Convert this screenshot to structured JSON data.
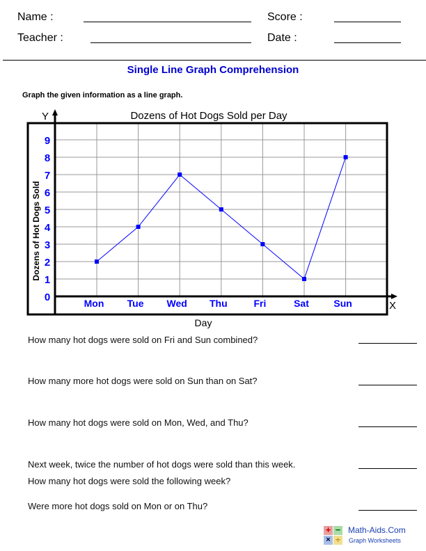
{
  "header": {
    "name_label": "Name :",
    "teacher_label": "Teacher :",
    "score_label": "Score :",
    "date_label": "Date :"
  },
  "worksheet": {
    "title": "Single Line Graph Comprehension",
    "instruction": "Graph the given information as a line graph."
  },
  "chart_data": {
    "type": "line",
    "title": "Dozens of Hot Dogs Sold per Day",
    "xlabel": "Day",
    "ylabel": "Dozens of Hot Dogs Sold",
    "x_axis_letter": "X",
    "y_axis_letter": "Y",
    "categories": [
      "Mon",
      "Tue",
      "Wed",
      "Thu",
      "Fri",
      "Sat",
      "Sun"
    ],
    "values": [
      2,
      4,
      7,
      5,
      3,
      1,
      8
    ],
    "yticks": [
      0,
      1,
      2,
      3,
      4,
      5,
      6,
      7,
      8,
      9
    ],
    "ylim": [
      0,
      10
    ],
    "grid": true,
    "line_color": "#0000ff",
    "tick_color": "#0000ff"
  },
  "questions": [
    {
      "text": "How many hot dogs were sold on Fri and Sun combined?"
    },
    {
      "text": "How many more hot dogs were sold on Sun than on Sat?"
    },
    {
      "text": "How many hot dogs were sold on Mon, Wed, and Thu?"
    },
    {
      "text": "Next week, twice the number of hot dogs were sold than this week.",
      "text2": "How many hot dogs were sold the following week?"
    },
    {
      "text": "Were more hot dogs sold on Mon or on Thu?"
    }
  ],
  "footer": {
    "brand": "Math-Aids.Com",
    "subtitle": "Graph Worksheets"
  }
}
